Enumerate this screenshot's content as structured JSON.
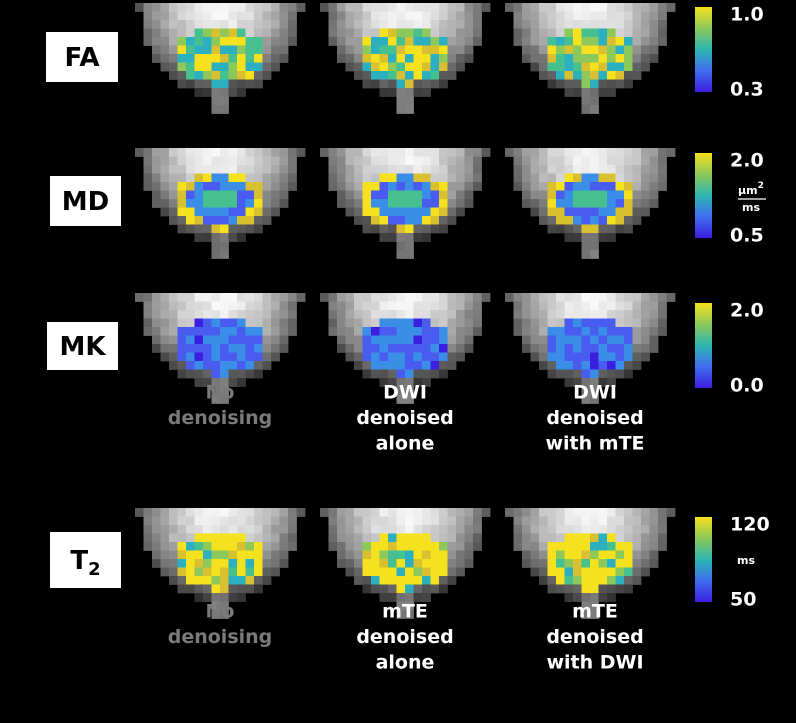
{
  "rows": [
    {
      "label": "FA",
      "colorbar": {
        "max": "1.0",
        "min": "0.3"
      }
    },
    {
      "label": "MD",
      "colorbar": {
        "max": "2.0",
        "min": "0.5",
        "unit": {
          "numerator": "μm",
          "power": "2",
          "denominator": "ms"
        }
      }
    },
    {
      "label": "MK",
      "colorbar": {
        "max": "2.0",
        "min": "0.0"
      }
    },
    {
      "label": "T",
      "label_subscript": "2",
      "colorbar": {
        "max": "120",
        "min": "50",
        "unit": {
          "single": "ms"
        }
      }
    }
  ],
  "caption_rows": [
    {
      "columns": [
        {
          "lines": [
            "No",
            "denoising"
          ]
        },
        {
          "lines": [
            "DWI",
            "denoised",
            "alone"
          ]
        },
        {
          "lines": [
            "DWI",
            "denoised",
            "with mTE"
          ]
        }
      ]
    },
    {
      "columns": [
        {
          "lines": [
            "No",
            "denoising"
          ]
        },
        {
          "lines": [
            "mTE",
            "denoised",
            "alone"
          ]
        },
        {
          "lines": [
            "mTE",
            "denoised",
            "with DWI"
          ]
        }
      ]
    }
  ]
}
